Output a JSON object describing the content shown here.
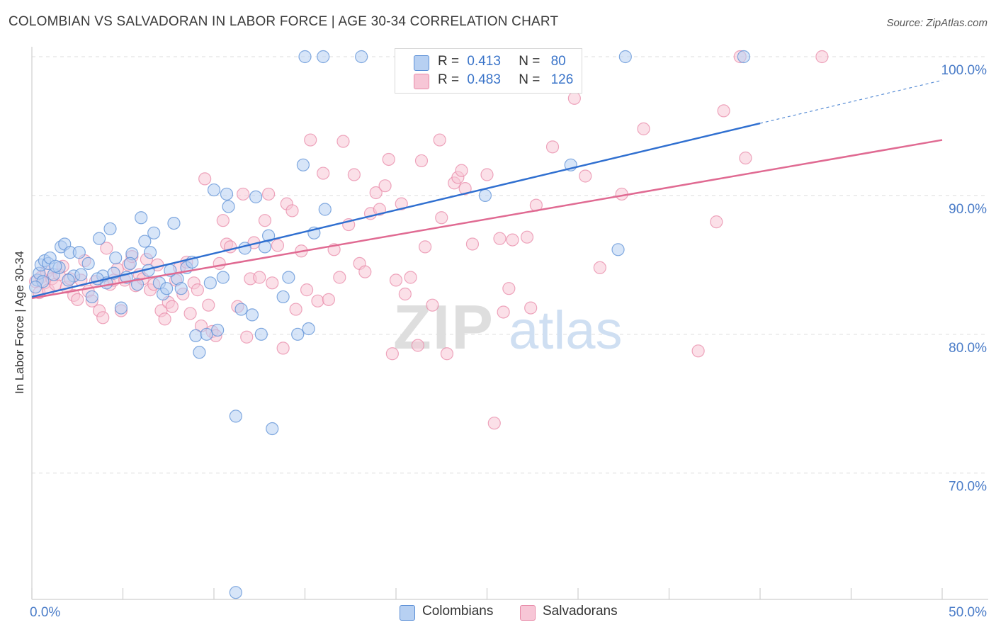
{
  "title": "COLOMBIAN VS SALVADORAN IN LABOR FORCE | AGE 30-34 CORRELATION CHART",
  "source": "Source: ZipAtlas.com",
  "watermark": {
    "zip": "ZIP",
    "atlas": "atlas"
  },
  "legend": {
    "r_label": "R =",
    "n_label": "N =",
    "colombians": {
      "r": "0.413",
      "n": "80"
    },
    "salvadorans": {
      "r": "0.483",
      "n": "126"
    }
  },
  "bottom_legend": {
    "colombians": "Colombians",
    "salvadorans": "Salvadorans"
  },
  "colors": {
    "blue_fill": "#b7d0f2",
    "blue_stroke": "#5b8fd6",
    "blue_line": "#2f6fd0",
    "pink_fill": "#f7c6d6",
    "pink_stroke": "#e88aa8",
    "pink_line": "#e06a92",
    "axis_label": "#4a7cc8",
    "grid": "#dddddd"
  },
  "chart_data": {
    "type": "scatter",
    "title": "COLOMBIAN VS SALVADORAN IN LABOR FORCE | AGE 30-34 CORRELATION CHART",
    "xlabel": "",
    "ylabel": "In Labor Force | Age 30-34",
    "xlim": [
      0,
      50
    ],
    "ylim": [
      60,
      101
    ],
    "x_tick_labels": [
      "0.0%",
      "50.0%"
    ],
    "y_ticks": [
      70,
      80,
      90,
      100
    ],
    "y_tick_labels": [
      "70.0%",
      "80.0%",
      "90.0%",
      "100.0%"
    ],
    "series": [
      {
        "name": "Colombians",
        "color": "#5b8fd6",
        "trend": {
          "x0": 0,
          "y0": 82.7,
          "x1": 40,
          "y1": 95.2,
          "dash_to_x": 50,
          "dash_to_y": 98.3
        },
        "points": [
          [
            0.3,
            83.9
          ],
          [
            0.4,
            84.4
          ],
          [
            0.5,
            85.0
          ],
          [
            0.6,
            83.8
          ],
          [
            0.7,
            85.3
          ],
          [
            0.9,
            85.1
          ],
          [
            1.0,
            85.5
          ],
          [
            1.2,
            84.3
          ],
          [
            1.5,
            84.8
          ],
          [
            1.6,
            86.3
          ],
          [
            1.8,
            86.5
          ],
          [
            2.1,
            85.9
          ],
          [
            2.3,
            84.2
          ],
          [
            2.6,
            85.9
          ],
          [
            2.7,
            84.3
          ],
          [
            3.1,
            85.1
          ],
          [
            3.3,
            82.7
          ],
          [
            3.7,
            86.9
          ],
          [
            3.9,
            84.2
          ],
          [
            4.1,
            83.7
          ],
          [
            4.3,
            87.6
          ],
          [
            4.5,
            84.4
          ],
          [
            4.6,
            85.5
          ],
          [
            4.9,
            81.9
          ],
          [
            5.2,
            84.1
          ],
          [
            5.5,
            85.8
          ],
          [
            5.8,
            83.6
          ],
          [
            6.0,
            88.4
          ],
          [
            6.2,
            86.7
          ],
          [
            6.5,
            85.9
          ],
          [
            6.7,
            87.3
          ],
          [
            7.0,
            83.7
          ],
          [
            7.2,
            82.9
          ],
          [
            7.4,
            83.3
          ],
          [
            7.8,
            88.0
          ],
          [
            8.0,
            84.0
          ],
          [
            8.2,
            83.3
          ],
          [
            8.5,
            84.8
          ],
          [
            8.8,
            85.2
          ],
          [
            9.0,
            79.9
          ],
          [
            9.2,
            78.7
          ],
          [
            9.6,
            80.0
          ],
          [
            9.8,
            83.7
          ],
          [
            10.0,
            90.4
          ],
          [
            10.2,
            80.3
          ],
          [
            10.5,
            84.1
          ],
          [
            10.8,
            89.2
          ],
          [
            10.7,
            90.1
          ],
          [
            11.2,
            74.1
          ],
          [
            11.5,
            81.8
          ],
          [
            11.7,
            86.2
          ],
          [
            12.1,
            81.4
          ],
          [
            12.3,
            89.9
          ],
          [
            12.6,
            80.0
          ],
          [
            12.8,
            86.3
          ],
          [
            13.0,
            87.1
          ],
          [
            13.2,
            73.2
          ],
          [
            13.8,
            82.7
          ],
          [
            14.1,
            84.1
          ],
          [
            14.6,
            80.0
          ],
          [
            14.9,
            92.2
          ],
          [
            15.2,
            80.4
          ],
          [
            15.5,
            87.3
          ],
          [
            16.1,
            89.0
          ],
          [
            15.0,
            100.0
          ],
          [
            16.0,
            100.0
          ],
          [
            18.1,
            100.0
          ],
          [
            24.9,
            90.0
          ],
          [
            29.6,
            92.2
          ],
          [
            32.2,
            86.1
          ],
          [
            32.6,
            100.0
          ],
          [
            39.1,
            100.0
          ],
          [
            11.2,
            61.4
          ],
          [
            0.2,
            83.4
          ],
          [
            2.0,
            83.9
          ],
          [
            1.3,
            84.9
          ],
          [
            6.4,
            84.6
          ],
          [
            7.6,
            84.6
          ],
          [
            3.6,
            84.0
          ],
          [
            5.4,
            85.1
          ]
        ]
      },
      {
        "name": "Salvadorans",
        "color": "#e88aa8",
        "trend": {
          "x0": 0,
          "y0": 82.6,
          "x1": 50,
          "y1": 94.0
        },
        "points": [
          [
            0.2,
            83.8
          ],
          [
            0.4,
            83.0
          ],
          [
            0.5,
            84.1
          ],
          [
            0.7,
            83.7
          ],
          [
            0.8,
            84.5
          ],
          [
            0.9,
            83.2
          ],
          [
            1.1,
            84.0
          ],
          [
            1.3,
            83.6
          ],
          [
            1.5,
            84.3
          ],
          [
            1.7,
            84.9
          ],
          [
            1.9,
            83.4
          ],
          [
            2.1,
            84.0
          ],
          [
            2.3,
            82.8
          ],
          [
            2.5,
            82.5
          ],
          [
            2.7,
            83.9
          ],
          [
            2.9,
            85.3
          ],
          [
            3.1,
            83.1
          ],
          [
            3.3,
            82.4
          ],
          [
            3.5,
            83.8
          ],
          [
            3.7,
            81.7
          ],
          [
            3.9,
            81.2
          ],
          [
            4.1,
            86.2
          ],
          [
            4.3,
            83.6
          ],
          [
            4.5,
            83.9
          ],
          [
            4.7,
            84.7
          ],
          [
            4.9,
            81.7
          ],
          [
            5.1,
            83.9
          ],
          [
            5.3,
            85.0
          ],
          [
            5.5,
            85.6
          ],
          [
            5.7,
            83.5
          ],
          [
            5.9,
            84.3
          ],
          [
            6.1,
            84.0
          ],
          [
            6.3,
            85.4
          ],
          [
            6.5,
            83.2
          ],
          [
            6.7,
            83.6
          ],
          [
            6.9,
            85.0
          ],
          [
            7.1,
            81.7
          ],
          [
            7.3,
            81.1
          ],
          [
            7.5,
            82.3
          ],
          [
            7.7,
            82.0
          ],
          [
            7.9,
            83.9
          ],
          [
            8.1,
            84.8
          ],
          [
            8.3,
            82.9
          ],
          [
            8.5,
            85.2
          ],
          [
            8.7,
            81.5
          ],
          [
            8.9,
            83.7
          ],
          [
            9.1,
            83.2
          ],
          [
            9.3,
            80.6
          ],
          [
            9.5,
            91.2
          ],
          [
            9.7,
            82.1
          ],
          [
            9.9,
            80.2
          ],
          [
            10.1,
            79.9
          ],
          [
            10.3,
            85.1
          ],
          [
            10.5,
            88.2
          ],
          [
            10.7,
            86.5
          ],
          [
            10.9,
            86.3
          ],
          [
            11.3,
            82.0
          ],
          [
            11.6,
            90.1
          ],
          [
            11.8,
            79.8
          ],
          [
            12.0,
            84.0
          ],
          [
            12.2,
            86.6
          ],
          [
            12.5,
            84.1
          ],
          [
            12.8,
            88.2
          ],
          [
            13.0,
            90.1
          ],
          [
            13.2,
            83.7
          ],
          [
            13.5,
            86.4
          ],
          [
            13.8,
            79.0
          ],
          [
            14.0,
            89.4
          ],
          [
            14.3,
            88.9
          ],
          [
            14.5,
            81.8
          ],
          [
            14.8,
            86.0
          ],
          [
            15.1,
            83.2
          ],
          [
            15.3,
            94.0
          ],
          [
            15.7,
            82.4
          ],
          [
            16.0,
            91.6
          ],
          [
            16.3,
            82.5
          ],
          [
            16.6,
            86.1
          ],
          [
            16.9,
            84.1
          ],
          [
            17.1,
            93.9
          ],
          [
            17.4,
            87.9
          ],
          [
            17.7,
            91.5
          ],
          [
            18.0,
            85.1
          ],
          [
            18.3,
            84.5
          ],
          [
            18.6,
            88.7
          ],
          [
            18.9,
            90.2
          ],
          [
            19.1,
            89.0
          ],
          [
            19.4,
            90.7
          ],
          [
            19.6,
            92.6
          ],
          [
            19.8,
            78.6
          ],
          [
            20.0,
            83.9
          ],
          [
            20.3,
            89.4
          ],
          [
            20.5,
            82.9
          ],
          [
            20.8,
            84.1
          ],
          [
            21.2,
            79.2
          ],
          [
            21.4,
            92.5
          ],
          [
            21.6,
            86.3
          ],
          [
            22.0,
            82.1
          ],
          [
            22.4,
            94.0
          ],
          [
            22.5,
            88.4
          ],
          [
            22.8,
            78.6
          ],
          [
            23.2,
            90.9
          ],
          [
            23.4,
            91.3
          ],
          [
            23.6,
            91.8
          ],
          [
            23.8,
            90.5
          ],
          [
            24.2,
            86.5
          ],
          [
            25.0,
            91.5
          ],
          [
            25.4,
            73.6
          ],
          [
            25.7,
            86.9
          ],
          [
            25.9,
            81.6
          ],
          [
            26.2,
            83.3
          ],
          [
            26.4,
            86.8
          ],
          [
            27.2,
            87.0
          ],
          [
            27.4,
            81.9
          ],
          [
            27.7,
            89.3
          ],
          [
            28.6,
            93.5
          ],
          [
            29.8,
            97.0
          ],
          [
            30.4,
            91.4
          ],
          [
            31.2,
            84.8
          ],
          [
            32.4,
            90.1
          ],
          [
            33.6,
            94.8
          ],
          [
            36.6,
            78.8
          ],
          [
            37.6,
            88.1
          ],
          [
            38.0,
            96.1
          ],
          [
            38.9,
            100.0
          ],
          [
            39.2,
            92.7
          ],
          [
            43.4,
            100.0
          ]
        ]
      }
    ]
  }
}
